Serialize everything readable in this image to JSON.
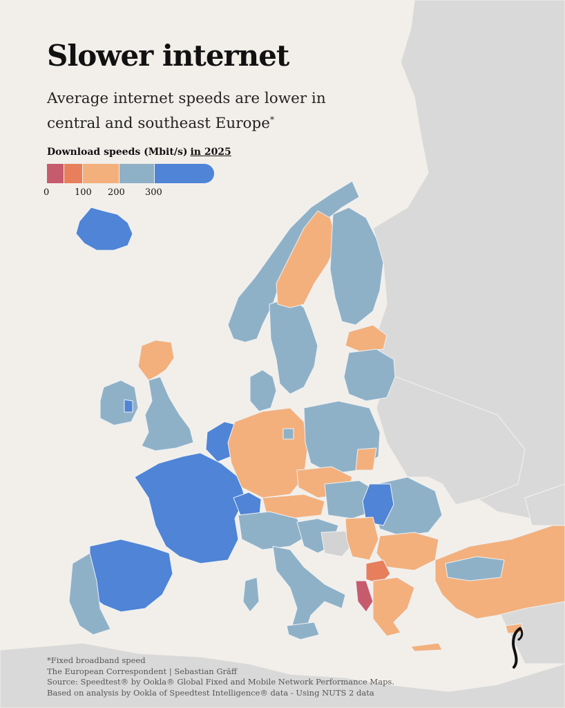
{
  "title": "Slower internet",
  "subtitle": "Average internet speeds are lower in central and southeast Europe",
  "subtitle_mark": "*",
  "legend": {
    "title": "Download speeds (Mbit/s)",
    "year_label": "in 2025",
    "ticks": [
      "0",
      "100",
      "200",
      "300"
    ],
    "bins": [
      {
        "range": "0-50",
        "color": "#c75b6e"
      },
      {
        "range": "50-100",
        "color": "#e77f5c"
      },
      {
        "range": "100-200",
        "color": "#f3b07d"
      },
      {
        "range": "200-300",
        "color": "#8fb1c8"
      },
      {
        "range": "300+",
        "color": "#4f84d6"
      }
    ]
  },
  "colors": {
    "background": "#f2efea",
    "non_europe_land": "#d8d8d8",
    "no_data": "#d3d3d3"
  },
  "footer": {
    "note": "*Fixed broadband speed",
    "credit": "The European Correspondent | Sebastian Gräff",
    "source": "Source: Speedtest® by Ookla® Global Fixed and Mobile Network Performance Maps.",
    "analysis": "Based on analysis by Ookla of Speedtest Intelligence® data - Using NUTS 2 data"
  },
  "brand_icon": "european-correspondent-logo"
}
